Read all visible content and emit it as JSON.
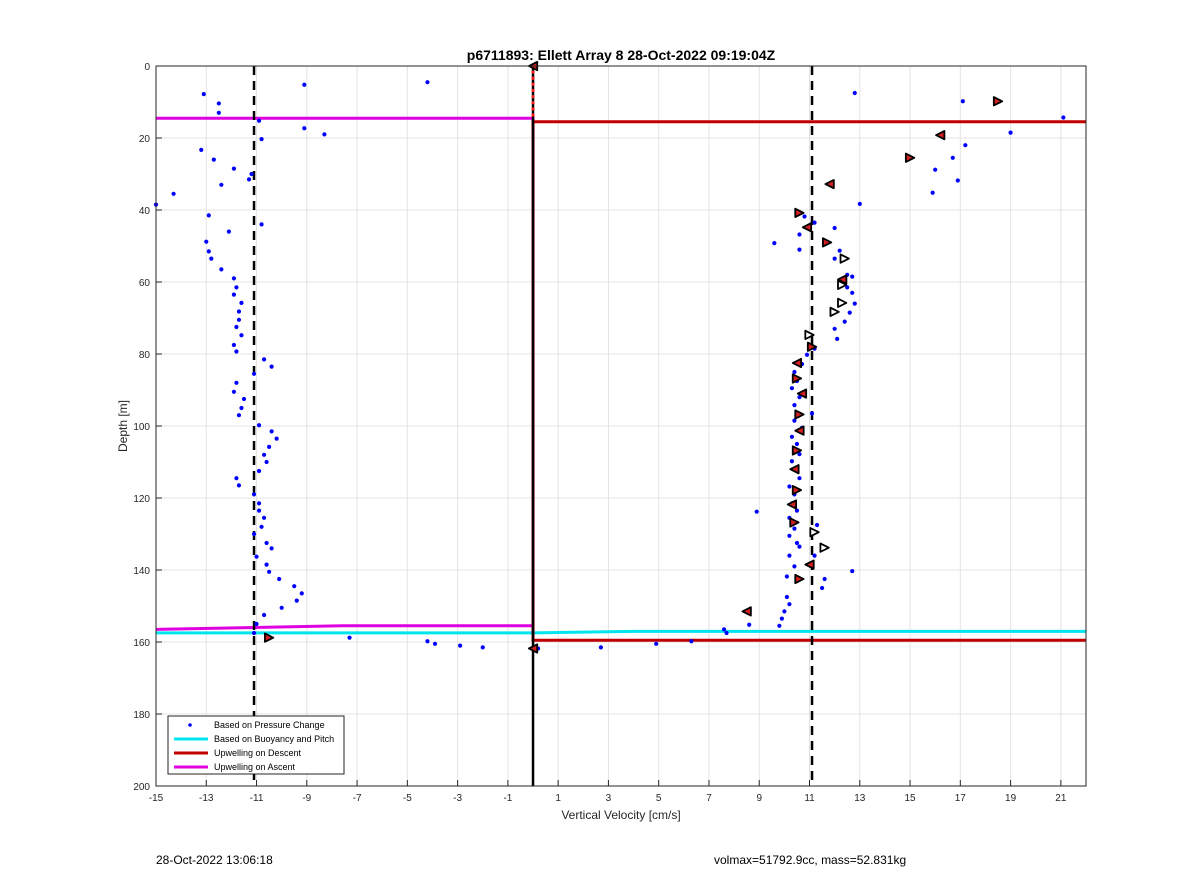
{
  "chart_data": {
    "type": "scatter",
    "title": "p6711893: Ellett Array 8 28-Oct-2022 09:19:04Z",
    "xlabel": "Vertical Velocity [cm/s]",
    "ylabel": "Depth [m]",
    "xlim": [
      -15,
      22
    ],
    "ylim": [
      0,
      200
    ],
    "y_reversed": true,
    "grid": true,
    "xticks": [
      -15,
      -13,
      -11,
      -9,
      -7,
      -5,
      -3,
      -1,
      1,
      3,
      5,
      7,
      9,
      11,
      13,
      15,
      17,
      19,
      21
    ],
    "yticks": [
      0,
      20,
      40,
      60,
      80,
      100,
      120,
      140,
      160,
      180,
      200
    ],
    "legend_position": "bottom-left",
    "legend": [
      {
        "label": "Based on Pressure Change",
        "color": "#0000ff",
        "style": "dot"
      },
      {
        "label": "Based on Buoyancy and Pitch",
        "color": "#00e5ee",
        "style": "line"
      },
      {
        "label": "Upwelling on Descent",
        "color": "#c00000",
        "style": "line"
      },
      {
        "label": "Upwelling on Ascent",
        "color": "#e000e0",
        "style": "line"
      }
    ],
    "pressure_change_points": [
      [
        -13.1,
        7.8
      ],
      [
        -12.5,
        10.4
      ],
      [
        -12.5,
        13
      ],
      [
        -9.1,
        5.2
      ],
      [
        -4.2,
        4.5
      ],
      [
        -15,
        38.5
      ],
      [
        -14.3,
        35.5
      ],
      [
        -13.2,
        23.3
      ],
      [
        -12.7,
        26
      ],
      [
        -12.4,
        33
      ],
      [
        -11.9,
        28.5
      ],
      [
        -11.3,
        31.5
      ],
      [
        -12.1,
        46
      ],
      [
        -12.9,
        41.5
      ],
      [
        -13,
        48.8
      ],
      [
        -12.9,
        51.5
      ],
      [
        -12.8,
        53.5
      ],
      [
        -12.4,
        56.5
      ],
      [
        -11.9,
        59
      ],
      [
        -11.8,
        61.5
      ],
      [
        -11.9,
        63.5
      ],
      [
        -11.6,
        65.8
      ],
      [
        -11.7,
        68.2
      ],
      [
        -11.7,
        70.5
      ],
      [
        -11.8,
        72.5
      ],
      [
        -11.6,
        74.8
      ],
      [
        -11.9,
        77.5
      ],
      [
        -11.8,
        79.3
      ],
      [
        -10.7,
        81.5
      ],
      [
        -10.4,
        83.5
      ],
      [
        -11.1,
        85.5
      ],
      [
        -11.8,
        88
      ],
      [
        -11.9,
        90.5
      ],
      [
        -11.5,
        92.5
      ],
      [
        -11.6,
        95
      ],
      [
        -11.7,
        97
      ],
      [
        -10.9,
        99.8
      ],
      [
        -10.4,
        101.5
      ],
      [
        -10.2,
        103.5
      ],
      [
        -10.5,
        105.8
      ],
      [
        -10.7,
        108
      ],
      [
        -10.6,
        110
      ],
      [
        -10.9,
        112.5
      ],
      [
        -11.8,
        114.5
      ],
      [
        -11.7,
        116.5
      ],
      [
        -11.1,
        119
      ],
      [
        -10.9,
        121.5
      ],
      [
        -10.9,
        123.5
      ],
      [
        -10.7,
        125.5
      ],
      [
        -10.8,
        128
      ],
      [
        -11.1,
        130
      ],
      [
        -10.6,
        132.5
      ],
      [
        -10.4,
        134
      ],
      [
        -11,
        136.3
      ],
      [
        -10.6,
        138.5
      ],
      [
        -10.5,
        140.5
      ],
      [
        -10.1,
        142.5
      ],
      [
        -9.5,
        144.5
      ],
      [
        -9.2,
        146.5
      ],
      [
        -9.4,
        148.5
      ],
      [
        -10,
        150.5
      ],
      [
        -10.7,
        152.5
      ],
      [
        -11,
        155
      ],
      [
        -11.1,
        157.5
      ],
      [
        -10.5,
        158.8
      ],
      [
        -7.3,
        158.8
      ],
      [
        -4.2,
        159.8
      ],
      [
        -3.9,
        160.5
      ],
      [
        -2.9,
        161
      ],
      [
        -2,
        161.5
      ],
      [
        0.2,
        161.8
      ],
      [
        2.7,
        161.5
      ],
      [
        4.9,
        160.5
      ],
      [
        6.3,
        159.8
      ],
      [
        7.6,
        156.5
      ],
      [
        7.7,
        157.5
      ],
      [
        8.6,
        155.2
      ],
      [
        8.9,
        123.8
      ],
      [
        9.6,
        49.2
      ],
      [
        10.6,
        51
      ],
      [
        10.6,
        46.8
      ],
      [
        11.2,
        43.5
      ],
      [
        10.8,
        41.8
      ],
      [
        12,
        45
      ],
      [
        12.2,
        51.3
      ],
      [
        12,
        53.5
      ],
      [
        12.5,
        58
      ],
      [
        12.7,
        58.5
      ],
      [
        12.5,
        61.5
      ],
      [
        12.7,
        63
      ],
      [
        12.8,
        66
      ],
      [
        12.6,
        68.5
      ],
      [
        12.4,
        71
      ],
      [
        12,
        73
      ],
      [
        12.1,
        75.8
      ],
      [
        11.2,
        78.5
      ],
      [
        10.9,
        80.2
      ],
      [
        10.7,
        82.8
      ],
      [
        10.4,
        85
      ],
      [
        10.5,
        87.5
      ],
      [
        10.3,
        89.5
      ],
      [
        10.6,
        92
      ],
      [
        10.4,
        94.2
      ],
      [
        11.1,
        96.5
      ],
      [
        10.4,
        98.5
      ],
      [
        10.7,
        100.5
      ],
      [
        10.3,
        103
      ],
      [
        10.5,
        105
      ],
      [
        10.6,
        107.8
      ],
      [
        10.3,
        109.8
      ],
      [
        10.5,
        112.5
      ],
      [
        10.6,
        114.5
      ],
      [
        10.2,
        116.8
      ],
      [
        10.4,
        119
      ],
      [
        10.3,
        121.5
      ],
      [
        10.5,
        123.5
      ],
      [
        10.2,
        125.5
      ],
      [
        10.4,
        128.5
      ],
      [
        10.2,
        130.5
      ],
      [
        10.5,
        132.5
      ],
      [
        10.6,
        133.5
      ],
      [
        10.2,
        136
      ],
      [
        10.4,
        139
      ],
      [
        10.1,
        141.8
      ],
      [
        10.1,
        147.5
      ],
      [
        10.2,
        149.5
      ],
      [
        10,
        151.5
      ],
      [
        9.9,
        153.5
      ],
      [
        9.8,
        155.5
      ],
      [
        11.3,
        127.5
      ],
      [
        12.7,
        140.3
      ],
      [
        11.6,
        142.5
      ],
      [
        11.5,
        145
      ],
      [
        11.2,
        136
      ],
      [
        13.0,
        38.3
      ],
      [
        12.8,
        7.5
      ],
      [
        17.1,
        9.8
      ],
      [
        21.1,
        14.3
      ],
      [
        19,
        18.5
      ],
      [
        17.2,
        22
      ],
      [
        16.7,
        25.5
      ],
      [
        16,
        28.8
      ],
      [
        16.9,
        31.8
      ],
      [
        15.9,
        35.2
      ],
      [
        -8.3,
        19
      ],
      [
        -9.1,
        17.3
      ],
      [
        -10.8,
        20.3
      ],
      [
        -10.9,
        15.2
      ],
      [
        -11.2,
        30
      ],
      [
        -10.8,
        44
      ]
    ],
    "triangle_markers_red": [
      [
        0,
        0
      ],
      [
        18.5,
        9.8
      ],
      [
        16.2,
        19.2
      ],
      [
        15,
        25.5
      ],
      [
        11.8,
        32.8
      ],
      [
        10.6,
        40.8
      ],
      [
        10.9,
        44.8
      ],
      [
        11.7,
        49
      ],
      [
        12.3,
        59.3
      ],
      [
        11.1,
        78
      ],
      [
        10.5,
        82.5
      ],
      [
        10.5,
        86.8
      ],
      [
        10.7,
        91
      ],
      [
        10.6,
        96.8
      ],
      [
        10.6,
        101.3
      ],
      [
        10.5,
        106.8
      ],
      [
        10.4,
        112
      ],
      [
        10.5,
        117.8
      ],
      [
        10.3,
        121.8
      ],
      [
        10.4,
        126.8
      ],
      [
        11,
        138.5
      ],
      [
        10.6,
        142.5
      ],
      [
        8.5,
        151.5
      ],
      [
        -10.5,
        158.8
      ],
      [
        0,
        161.8
      ]
    ],
    "triangle_markers_white": [
      [
        12.4,
        53.5
      ],
      [
        12.3,
        60.8
      ],
      [
        12.3,
        65.8
      ],
      [
        12,
        68.3
      ],
      [
        11,
        74.7
      ],
      [
        11.2,
        129.5
      ],
      [
        11.6,
        133.8
      ]
    ],
    "reference_lines": {
      "dashed_vertical_x": [
        -11.1,
        11.1
      ],
      "solid_vertical_x": 0,
      "ascent_upwelling_depths": [
        14.5,
        156.5
      ],
      "descent_upwelling_depths": [
        15.5,
        159.5
      ],
      "buoyancy_pitch_depth": 157.2
    }
  },
  "footer": {
    "left": "28-Oct-2022 13:06:18",
    "right": "volmax=51792.9cc, mass=52.831kg"
  }
}
